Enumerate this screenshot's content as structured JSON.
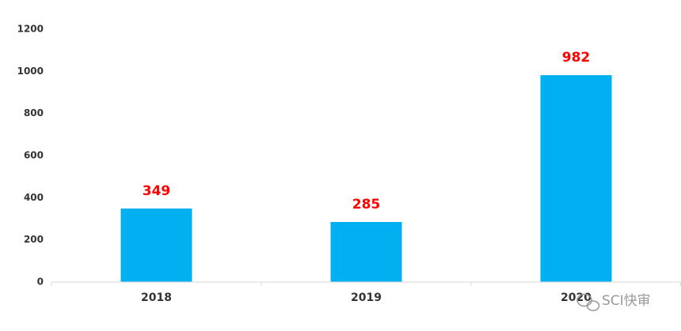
{
  "chart_data": {
    "type": "bar",
    "categories": [
      "2018",
      "2019",
      "2020"
    ],
    "values": [
      349,
      285,
      982
    ],
    "color": "#00b0f0",
    "label_color": "#ff0000",
    "ylim": [
      0,
      1200
    ],
    "yticks": [
      0,
      200,
      400,
      600,
      800,
      1000,
      1200
    ],
    "grid": false,
    "watermark": "SCI快审"
  }
}
